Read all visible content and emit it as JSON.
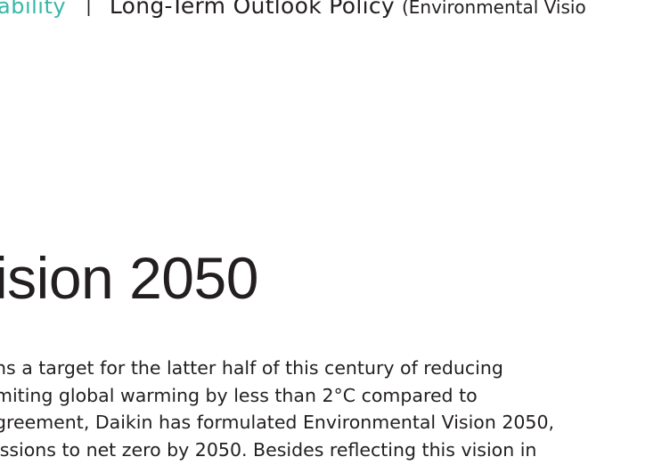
{
  "header": {
    "section": "ability",
    "separator": "|",
    "title": "Long-Term Outlook Policy",
    "subtitle": "(Environmental Visio"
  },
  "main": {
    "heading": "ision 2050",
    "body_lines": [
      "ns a target for the latter half of this century of reducing",
      "miting global warming by less than 2°C compared to",
      "greement, Daikin has formulated Environmental Vision 2050,",
      "issions to net zero by 2050. Besides reflecting this vision in"
    ]
  }
}
